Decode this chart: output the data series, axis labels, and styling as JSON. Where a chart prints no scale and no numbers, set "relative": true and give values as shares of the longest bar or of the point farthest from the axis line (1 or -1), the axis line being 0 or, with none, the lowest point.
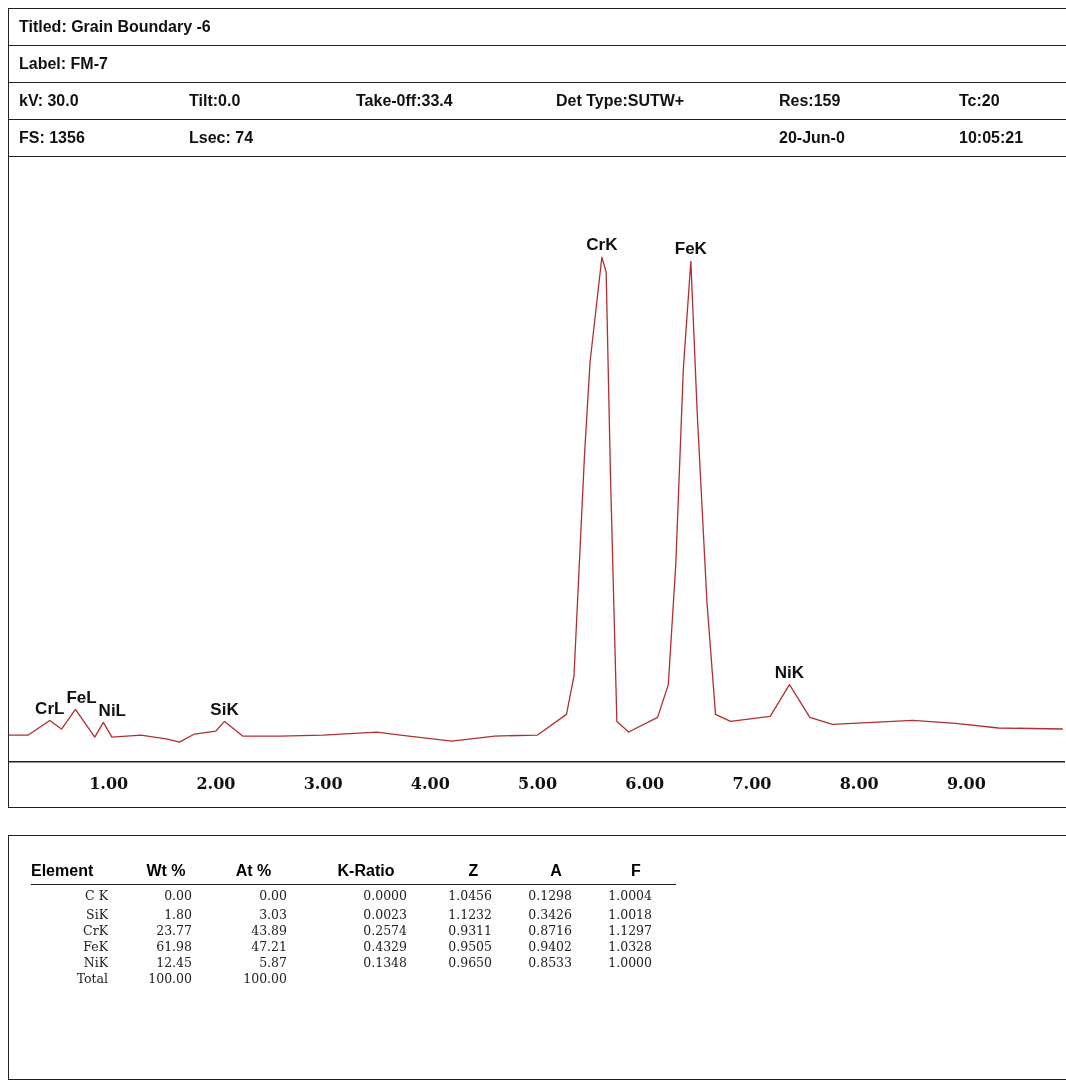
{
  "chart_data": [
    {
      "type": "line",
      "title": "Titled: Grain Boundary -6",
      "subtitle": "Label: FM-7",
      "relative": true,
      "color": "#b03030",
      "grid": false,
      "legend": false,
      "marker": "none",
      "line_style": "solid",
      "x": [
        0.07,
        0.25,
        0.45,
        0.56,
        0.69,
        0.87,
        0.95,
        1.03,
        1.3,
        1.55,
        1.66,
        1.8,
        2.0,
        2.08,
        2.25,
        2.6,
        3.0,
        3.5,
        3.8,
        4.2,
        4.6,
        5.0,
        5.27,
        5.34,
        5.44,
        5.49,
        5.6,
        5.64,
        5.68,
        5.72,
        5.74,
        5.85,
        6.12,
        6.22,
        6.29,
        6.36,
        6.43,
        6.49,
        6.58,
        6.66,
        6.8,
        7.17,
        7.35,
        7.54,
        7.75,
        8.5,
        8.9,
        9.3,
        9.9
      ],
      "values": [
        0.053,
        0.053,
        0.082,
        0.065,
        0.104,
        0.049,
        0.078,
        0.049,
        0.053,
        0.045,
        0.039,
        0.055,
        0.061,
        0.08,
        0.051,
        0.051,
        0.053,
        0.059,
        0.051,
        0.041,
        0.051,
        0.053,
        0.094,
        0.17,
        0.616,
        0.793,
        1.0,
        0.971,
        0.571,
        0.243,
        0.08,
        0.059,
        0.088,
        0.153,
        0.393,
        0.779,
        0.992,
        0.689,
        0.317,
        0.094,
        0.08,
        0.09,
        0.153,
        0.088,
        0.074,
        0.082,
        0.076,
        0.067,
        0.065
      ],
      "xlim": [
        0.07,
        9.92
      ],
      "xticks": [
        {
          "value": 1,
          "label": "1.00"
        },
        {
          "value": 2,
          "label": "2.00"
        },
        {
          "value": 3,
          "label": "3.00"
        },
        {
          "value": 4,
          "label": "4.00"
        },
        {
          "value": 5,
          "label": "5.00"
        },
        {
          "value": 6,
          "label": "6.00"
        },
        {
          "value": 7,
          "label": "7.00"
        },
        {
          "value": 8,
          "label": "8.00"
        },
        {
          "value": 9,
          "label": "9.00"
        }
      ],
      "annotations": [
        "kV: 30.0",
        "Tilt:0.0",
        "Take-0ff:33.4",
        "Det Type:SUTW+",
        "Res:159",
        "Tc:20",
        "FS: 1356",
        "Lsec: 74",
        "20-Jun-0",
        "10:05:21",
        {
          "text": "CrL",
          "x": 0.45,
          "y": 0.082
        },
        {
          "text": "FeL",
          "x": 0.69,
          "y": 0.104
        },
        {
          "text": "NiL",
          "x": 0.95,
          "y": 0.078
        },
        {
          "text": "SiK",
          "x": 2.08,
          "y": 0.08
        },
        {
          "text": "CrK",
          "x": 5.6,
          "y": 1.0
        },
        {
          "text": "FeK",
          "x": 6.43,
          "y": 0.992
        },
        {
          "text": "NiK",
          "x": 7.35,
          "y": 0.153
        }
      ]
    },
    {
      "type": "other",
      "xlabel": "Element",
      "categories": [
        "C K",
        "SiK",
        "CrK",
        "FeK",
        "NiK",
        "Total"
      ],
      "series": [
        {
          "name": "Wt %",
          "values": [
            0.0,
            1.8,
            23.77,
            61.98,
            12.45,
            100.0
          ],
          "value_labels": [
            "0.00",
            "1.80",
            "23.77",
            "61.98",
            "12.45",
            "100.00"
          ]
        },
        {
          "name": "At %",
          "values": [
            0.0,
            3.03,
            43.89,
            47.21,
            5.87,
            100.0
          ],
          "value_labels": [
            "0.00",
            "3.03",
            "43.89",
            "47.21",
            "5.87",
            "100.00"
          ]
        },
        {
          "name": "K-Ratio",
          "values": [
            0.0,
            0.0023,
            0.2574,
            0.4329,
            0.1348,
            null
          ],
          "value_labels": [
            "0.0000",
            "0.0023",
            "0.2574",
            "0.4329",
            "0.1348",
            null
          ]
        },
        {
          "name": "Z",
          "values": [
            1.0456,
            1.1232,
            0.9311,
            0.9505,
            0.965,
            null
          ],
          "value_labels": [
            "1.0456",
            "1.1232",
            "0.9311",
            "0.9505",
            "0.9650",
            null
          ]
        },
        {
          "name": "A",
          "values": [
            0.1298,
            0.3426,
            0.8716,
            0.9402,
            0.8533,
            null
          ],
          "value_labels": [
            "0.1298",
            "0.3426",
            "0.8716",
            "0.9402",
            "0.8533",
            null
          ]
        },
        {
          "name": "F",
          "values": [
            1.0004,
            1.0018,
            1.1297,
            1.0328,
            1.0,
            null
          ],
          "value_labels": [
            "1.0004",
            "1.0018",
            "1.1297",
            "1.0328",
            "1.0000",
            null
          ]
        }
      ]
    }
  ]
}
